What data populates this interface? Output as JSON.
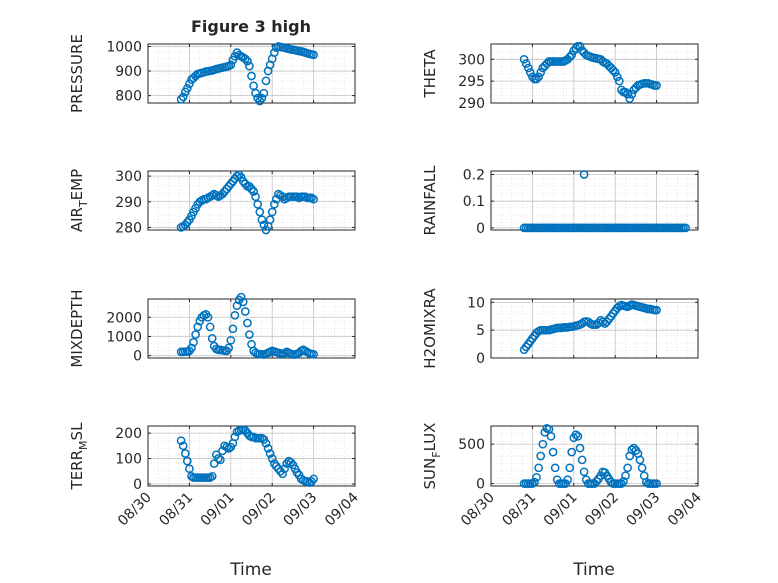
{
  "figure": {
    "title": "Figure 3 high",
    "marker_color": "#0072BD",
    "grid": true,
    "xlabel": "Time"
  },
  "chart_data": [
    {
      "type": "scatter",
      "ylabel": "PRESSURE",
      "ylim": [
        770,
        1010
      ],
      "yticks": [
        800,
        900,
        1000
      ],
      "yticklabels": [
        "800",
        "900",
        "1000"
      ],
      "xlim": [
        0,
        5
      ],
      "title": "Figure 3 high",
      "x": [
        0.8,
        0.85,
        0.9,
        0.95,
        1.0,
        1.05,
        1.1,
        1.15,
        1.2,
        1.25,
        1.3,
        1.35,
        1.4,
        1.45,
        1.5,
        1.55,
        1.6,
        1.65,
        1.7,
        1.75,
        1.8,
        1.85,
        1.9,
        1.95,
        2.0,
        2.05,
        2.1,
        2.15,
        2.2,
        2.25,
        2.3,
        2.35,
        2.4,
        2.45,
        2.5,
        2.55,
        2.6,
        2.65,
        2.7,
        2.75,
        2.8,
        2.85,
        2.9,
        2.95,
        3.0,
        3.05,
        3.1,
        3.15,
        3.2,
        3.25,
        3.3,
        3.35,
        3.4,
        3.45,
        3.5,
        3.55,
        3.6,
        3.65,
        3.7,
        3.75,
        3.8,
        3.85,
        3.9,
        3.95,
        4.0
      ],
      "y": [
        785,
        795,
        815,
        830,
        848,
        865,
        872,
        880,
        888,
        890,
        893,
        895,
        898,
        899,
        901,
        902,
        905,
        908,
        910,
        912,
        914,
        916,
        918,
        920,
        925,
        945,
        960,
        975,
        965,
        960,
        955,
        950,
        940,
        920,
        880,
        840,
        810,
        790,
        778,
        790,
        810,
        860,
        900,
        925,
        950,
        975,
        995,
        1000,
        998,
        996,
        995,
        992,
        990,
        988,
        987,
        985,
        983,
        981,
        980,
        978,
        975,
        972,
        970,
        968,
        966
      ]
    },
    {
      "type": "scatter",
      "ylabel": "AIR_TEMP",
      "ylim": [
        279,
        302
      ],
      "yticks": [
        280,
        290,
        300
      ],
      "yticklabels": [
        "280",
        "290",
        "300"
      ],
      "xlim": [
        0,
        5
      ],
      "x": [
        0.8,
        0.85,
        0.9,
        0.95,
        1.0,
        1.05,
        1.1,
        1.15,
        1.2,
        1.25,
        1.3,
        1.35,
        1.4,
        1.45,
        1.5,
        1.55,
        1.6,
        1.65,
        1.7,
        1.75,
        1.8,
        1.85,
        1.9,
        1.95,
        2.0,
        2.05,
        2.1,
        2.15,
        2.2,
        2.25,
        2.3,
        2.35,
        2.4,
        2.45,
        2.5,
        2.55,
        2.6,
        2.65,
        2.7,
        2.75,
        2.8,
        2.85,
        2.9,
        2.95,
        3.0,
        3.05,
        3.1,
        3.15,
        3.2,
        3.25,
        3.3,
        3.35,
        3.4,
        3.45,
        3.5,
        3.55,
        3.6,
        3.65,
        3.7,
        3.75,
        3.8,
        3.85,
        3.9,
        3.95,
        4.0
      ],
      "y": [
        280,
        280.5,
        281,
        282,
        283,
        284.5,
        286,
        287.5,
        289,
        290,
        290.5,
        291,
        291,
        291.5,
        292,
        292.5,
        293,
        292.5,
        292,
        292.5,
        293,
        294,
        295,
        296,
        297,
        298,
        299,
        300,
        300.5,
        299.5,
        298,
        297,
        296,
        296,
        295,
        294,
        292,
        289,
        286,
        283,
        281,
        279,
        280.5,
        283,
        286,
        289,
        291,
        293,
        292.5,
        292,
        291,
        291.5,
        292,
        292,
        292,
        292,
        292,
        291.5,
        292,
        292,
        292,
        291.5,
        291.5,
        291.5,
        291
      ]
    },
    {
      "type": "scatter",
      "ylabel": "MIXDEPTH",
      "ylim": [
        -120,
        2950
      ],
      "yticks": [
        0,
        1000,
        2000
      ],
      "yticklabels": [
        "0",
        "1000",
        "2000"
      ],
      "xlim": [
        0,
        5
      ],
      "x": [
        0.8,
        0.85,
        0.9,
        0.95,
        1.0,
        1.05,
        1.1,
        1.15,
        1.2,
        1.25,
        1.3,
        1.35,
        1.4,
        1.45,
        1.5,
        1.55,
        1.6,
        1.65,
        1.7,
        1.75,
        1.8,
        1.85,
        1.9,
        1.95,
        2.0,
        2.05,
        2.1,
        2.15,
        2.2,
        2.25,
        2.3,
        2.35,
        2.4,
        2.45,
        2.5,
        2.55,
        2.6,
        2.65,
        2.7,
        2.75,
        2.8,
        2.85,
        2.9,
        2.95,
        3.0,
        3.05,
        3.1,
        3.15,
        3.2,
        3.25,
        3.3,
        3.35,
        3.4,
        3.45,
        3.5,
        3.55,
        3.6,
        3.65,
        3.7,
        3.75,
        3.8,
        3.85,
        3.9,
        3.95,
        4.0
      ],
      "y": [
        200,
        200,
        210,
        220,
        250,
        400,
        700,
        1100,
        1500,
        1800,
        2000,
        2100,
        2150,
        2000,
        1500,
        900,
        500,
        350,
        300,
        300,
        280,
        260,
        250,
        400,
        800,
        1400,
        2100,
        2600,
        2900,
        3050,
        2800,
        2300,
        1700,
        1100,
        600,
        250,
        150,
        100,
        80,
        70,
        60,
        100,
        150,
        200,
        250,
        220,
        180,
        150,
        120,
        100,
        130,
        200,
        150,
        100,
        60,
        60,
        100,
        150,
        250,
        300,
        250,
        180,
        120,
        90,
        70
      ]
    },
    {
      "type": "scatter",
      "ylabel": "TERR_MSL",
      "ylim": [
        -8,
        228
      ],
      "yticks": [
        0,
        100,
        200
      ],
      "yticklabels": [
        "0",
        "100",
        "200"
      ],
      "xlim": [
        0,
        5
      ],
      "x": [
        0.8,
        0.85,
        0.9,
        0.95,
        1.0,
        1.05,
        1.1,
        1.15,
        1.2,
        1.25,
        1.3,
        1.35,
        1.4,
        1.45,
        1.5,
        1.55,
        1.6,
        1.65,
        1.7,
        1.75,
        1.8,
        1.85,
        1.9,
        1.95,
        2.0,
        2.05,
        2.1,
        2.15,
        2.2,
        2.25,
        2.3,
        2.35,
        2.4,
        2.45,
        2.5,
        2.55,
        2.6,
        2.65,
        2.7,
        2.75,
        2.8,
        2.85,
        2.9,
        2.95,
        3.0,
        3.05,
        3.1,
        3.15,
        3.2,
        3.25,
        3.3,
        3.35,
        3.4,
        3.45,
        3.5,
        3.55,
        3.6,
        3.65,
        3.7,
        3.75,
        3.8,
        3.85,
        3.9,
        3.95,
        4.0
      ],
      "y": [
        170,
        150,
        120,
        90,
        60,
        30,
        25,
        25,
        25,
        25,
        25,
        25,
        25,
        25,
        25,
        30,
        80,
        115,
        100,
        95,
        130,
        150,
        145,
        140,
        145,
        160,
        185,
        205,
        210,
        212,
        213,
        210,
        200,
        190,
        185,
        185,
        180,
        180,
        180,
        180,
        175,
        160,
        140,
        120,
        100,
        80,
        70,
        60,
        50,
        40,
        60,
        80,
        90,
        85,
        75,
        60,
        45,
        35,
        20,
        15,
        10,
        10,
        5,
        10,
        20
      ]
    },
    {
      "type": "scatter",
      "ylabel": "THETA",
      "ylim": [
        290,
        303.5
      ],
      "yticks": [
        290,
        295,
        300
      ],
      "yticklabels": [
        "290",
        "295",
        "300"
      ],
      "xlim": [
        0,
        5
      ],
      "x": [
        0.8,
        0.85,
        0.9,
        0.95,
        1.0,
        1.05,
        1.1,
        1.15,
        1.2,
        1.25,
        1.3,
        1.35,
        1.4,
        1.45,
        1.5,
        1.55,
        1.6,
        1.65,
        1.7,
        1.75,
        1.8,
        1.85,
        1.9,
        1.95,
        2.0,
        2.05,
        2.1,
        2.15,
        2.2,
        2.25,
        2.3,
        2.35,
        2.4,
        2.45,
        2.5,
        2.55,
        2.6,
        2.65,
        2.7,
        2.75,
        2.8,
        2.85,
        2.9,
        2.95,
        3.0,
        3.05,
        3.1,
        3.15,
        3.2,
        3.25,
        3.3,
        3.35,
        3.4,
        3.45,
        3.5,
        3.55,
        3.6,
        3.65,
        3.7,
        3.75,
        3.8,
        3.85,
        3.9,
        3.95,
        4.0
      ],
      "y": [
        300,
        299,
        298,
        297,
        296,
        295.5,
        295.5,
        296,
        297,
        298,
        298.5,
        299,
        299.5,
        299.5,
        299.5,
        299.5,
        299.5,
        299.5,
        299.5,
        299.5,
        299.7,
        300,
        300.5,
        301,
        302,
        302.5,
        303,
        303,
        302,
        301.5,
        301,
        300.8,
        300.6,
        300.4,
        300.3,
        300.2,
        300.1,
        300,
        299.5,
        299.2,
        299,
        298.5,
        298,
        297.5,
        297,
        296,
        295,
        293,
        292.5,
        292.5,
        292,
        291,
        292,
        293,
        293.5,
        294,
        294.2,
        294.4,
        294.5,
        294.5,
        294.5,
        294.3,
        294.2,
        294,
        294
      ]
    },
    {
      "type": "scatter",
      "ylabel": "RAINFALL",
      "ylim": [
        -0.008,
        0.213
      ],
      "yticks": [
        0,
        0.1,
        0.2
      ],
      "yticklabels": [
        "0",
        "0.1",
        "0.2"
      ],
      "xlim": [
        0,
        5
      ],
      "x": [
        0.8,
        0.85,
        0.9,
        0.95,
        1.0,
        1.05,
        1.1,
        1.15,
        1.2,
        1.25,
        1.3,
        1.35,
        1.4,
        1.45,
        1.5,
        1.55,
        1.6,
        1.65,
        1.7,
        1.75,
        1.8,
        1.85,
        1.9,
        1.95,
        2.0,
        2.05,
        2.1,
        2.15,
        2.2,
        2.25,
        2.3,
        2.35,
        2.4,
        2.45,
        2.5,
        2.55,
        2.6,
        2.65,
        2.7,
        2.75,
        2.8,
        2.85,
        2.9,
        2.95,
        3.0,
        3.05,
        3.1,
        3.15,
        3.2,
        3.25,
        3.3,
        3.35,
        3.4,
        3.45,
        3.5,
        3.55,
        3.6,
        3.65,
        3.7,
        3.75,
        3.8,
        3.85,
        3.9,
        3.95,
        4.0,
        4.05,
        4.1,
        4.15,
        4.2,
        4.25,
        4.3,
        4.35,
        4.4,
        4.45,
        4.5,
        4.55,
        4.6,
        4.65,
        4.7,
        2.25
      ],
      "y": [
        0,
        0,
        0,
        0,
        0,
        0,
        0,
        0,
        0,
        0,
        0,
        0,
        0,
        0,
        0,
        0,
        0,
        0,
        0,
        0,
        0,
        0,
        0,
        0,
        0,
        0,
        0,
        0,
        0,
        0,
        0,
        0,
        0,
        0,
        0,
        0,
        0,
        0,
        0,
        0,
        0,
        0,
        0,
        0,
        0,
        0,
        0,
        0,
        0,
        0,
        0,
        0,
        0,
        0,
        0,
        0,
        0,
        0,
        0,
        0,
        0,
        0,
        0,
        0,
        0,
        0,
        0,
        0,
        0,
        0,
        0,
        0,
        0,
        0,
        0,
        0,
        0,
        0,
        0,
        0.2
      ]
    },
    {
      "type": "scatter",
      "ylabel": "H2OMIXRA",
      "ylim": [
        0,
        10.6
      ],
      "yticks": [
        0,
        5,
        10
      ],
      "yticklabels": [
        "0",
        "5",
        "10"
      ],
      "xlim": [
        0,
        5
      ],
      "x": [
        0.8,
        0.85,
        0.9,
        0.95,
        1.0,
        1.05,
        1.1,
        1.15,
        1.2,
        1.25,
        1.3,
        1.35,
        1.4,
        1.45,
        1.5,
        1.55,
        1.6,
        1.65,
        1.7,
        1.75,
        1.8,
        1.85,
        1.9,
        1.95,
        2.0,
        2.05,
        2.1,
        2.15,
        2.2,
        2.25,
        2.3,
        2.35,
        2.4,
        2.45,
        2.5,
        2.55,
        2.6,
        2.65,
        2.7,
        2.75,
        2.8,
        2.85,
        2.9,
        2.95,
        3.0,
        3.05,
        3.1,
        3.15,
        3.2,
        3.25,
        3.3,
        3.35,
        3.4,
        3.45,
        3.5,
        3.55,
        3.6,
        3.65,
        3.7,
        3.75,
        3.8,
        3.85,
        3.9,
        3.95,
        4.0
      ],
      "y": [
        1.5,
        2,
        2.5,
        3,
        3.5,
        4,
        4.5,
        4.8,
        5,
        5,
        5,
        5,
        5,
        5.1,
        5.2,
        5.3,
        5.4,
        5.4,
        5.4,
        5.5,
        5.5,
        5.5,
        5.6,
        5.6,
        5.7,
        5.8,
        5.9,
        6,
        6.2,
        6.5,
        6.6,
        6.5,
        6.2,
        6,
        6,
        6,
        6.3,
        6.8,
        6.5,
        6.2,
        6.5,
        7,
        7.5,
        8,
        8.5,
        9,
        9.3,
        9.5,
        9.4,
        9.3,
        9.2,
        9.4,
        9.6,
        9.5,
        9.4,
        9.3,
        9.2,
        9.1,
        9,
        8.9,
        8.8,
        8.8,
        8.7,
        8.6,
        8.6
      ]
    },
    {
      "type": "scatter",
      "ylabel": "SUN_FLUX",
      "ylim": [
        -30,
        730
      ],
      "yticks": [
        0,
        500
      ],
      "yticklabels": [
        "0",
        "500"
      ],
      "xlim": [
        0,
        5
      ],
      "x": [
        0.8,
        0.85,
        0.9,
        0.95,
        1.0,
        1.05,
        1.1,
        1.15,
        1.2,
        1.25,
        1.3,
        1.35,
        1.4,
        1.45,
        1.5,
        1.55,
        1.6,
        1.65,
        1.7,
        1.75,
        1.8,
        1.85,
        1.9,
        1.95,
        2.0,
        2.05,
        2.1,
        2.15,
        2.2,
        2.25,
        2.3,
        2.35,
        2.4,
        2.45,
        2.5,
        2.55,
        2.6,
        2.65,
        2.7,
        2.75,
        2.8,
        2.85,
        2.9,
        2.95,
        3.0,
        3.05,
        3.1,
        3.15,
        3.2,
        3.25,
        3.3,
        3.35,
        3.4,
        3.45,
        3.5,
        3.55,
        3.6,
        3.65,
        3.7,
        3.75,
        3.8,
        3.85,
        3.9,
        3.95,
        4.0
      ],
      "y": [
        0,
        0,
        0,
        0,
        0,
        20,
        80,
        200,
        350,
        500,
        650,
        700,
        690,
        600,
        400,
        200,
        50,
        0,
        0,
        0,
        0,
        50,
        200,
        400,
        580,
        620,
        600,
        450,
        300,
        150,
        50,
        0,
        0,
        0,
        0,
        30,
        60,
        100,
        150,
        140,
        100,
        60,
        20,
        0,
        0,
        0,
        0,
        0,
        30,
        100,
        200,
        350,
        430,
        450,
        420,
        380,
        300,
        200,
        100,
        20,
        0,
        0,
        0,
        0,
        0
      ]
    }
  ],
  "xaxis": {
    "ticks": [
      0,
      1,
      2,
      3,
      4,
      5
    ],
    "ticklabels": [
      "08/30",
      "08/31",
      "09/01",
      "09/02",
      "09/03",
      "09/04"
    ]
  }
}
